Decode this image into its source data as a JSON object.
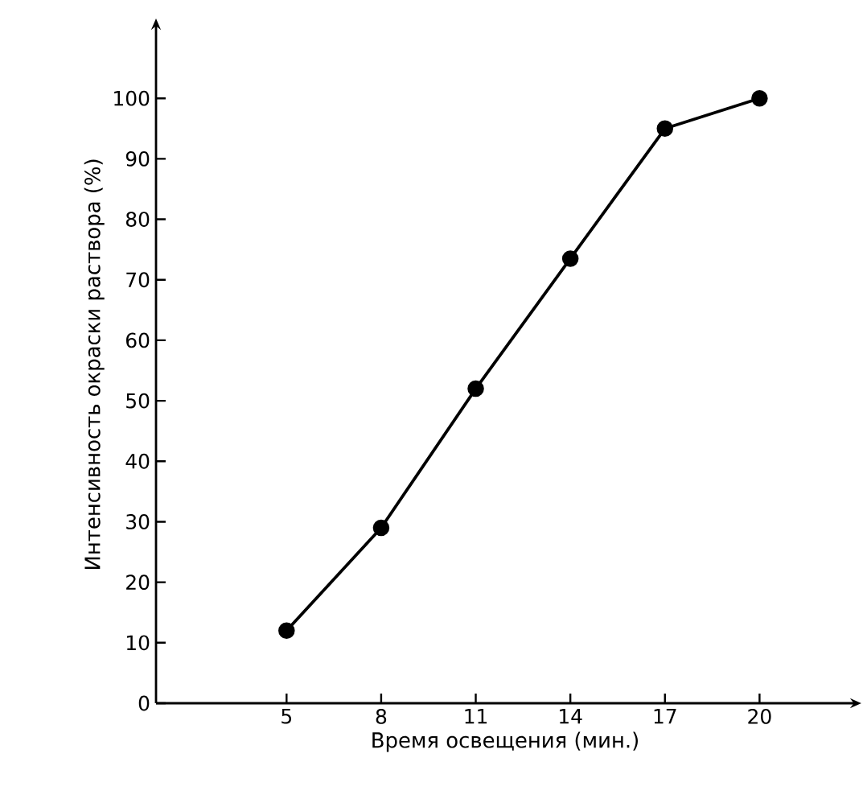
{
  "chart_data": {
    "type": "line",
    "xlabel": "Время освещения (мин.)",
    "ylabel": "Интенсивность окраски раствора (%)",
    "x": [
      5,
      8,
      11,
      14,
      17,
      20
    ],
    "series": [
      {
        "color": "#000000",
        "values": [
          12,
          29,
          52,
          73.5,
          95,
          100
        ]
      }
    ],
    "xlim": [
      0.86,
      23
    ],
    "xticks": [
      5,
      8,
      11,
      14,
      17,
      20
    ],
    "ylim": [
      0,
      112
    ],
    "yticks": [
      0,
      10,
      20,
      30,
      40,
      50,
      60,
      70,
      80,
      90,
      100
    ],
    "marker": "circle",
    "line_style": "solid",
    "grid": false
  }
}
